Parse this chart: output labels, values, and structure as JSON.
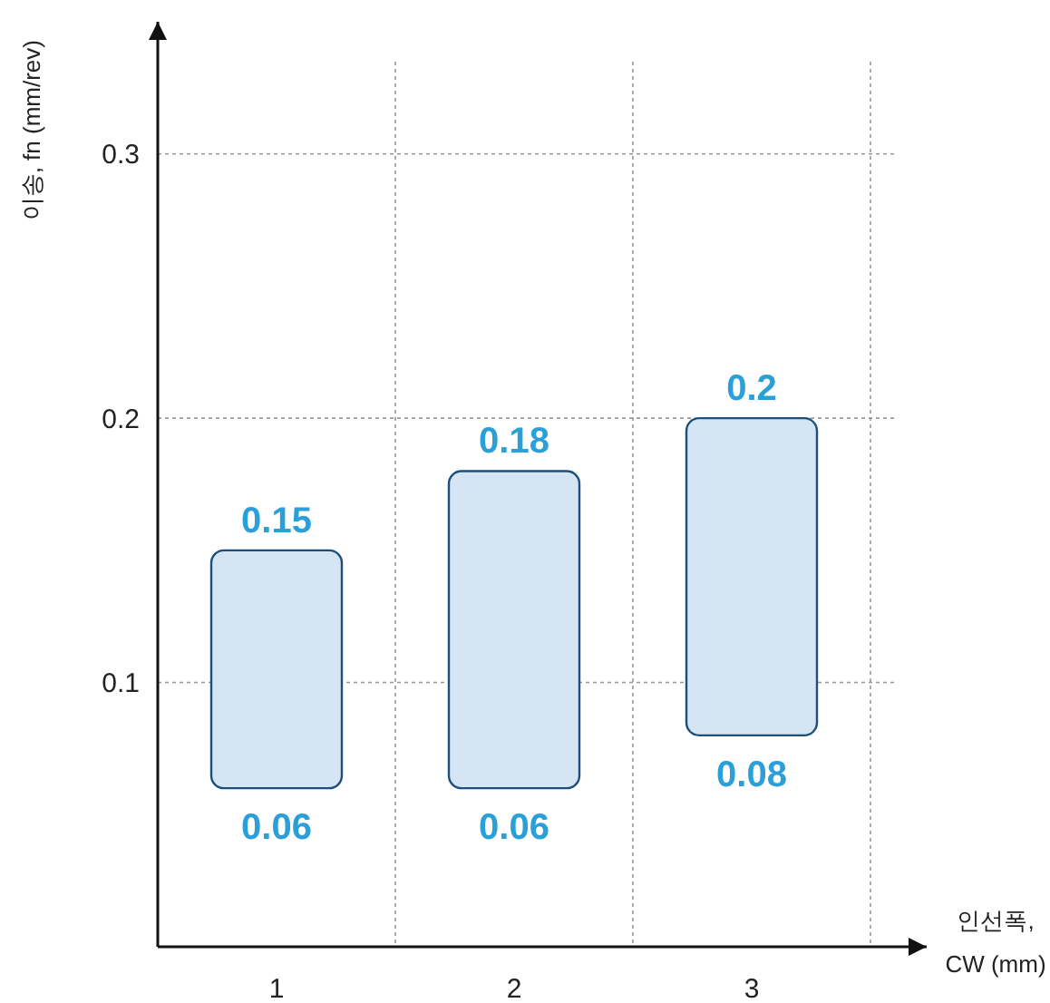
{
  "chart_data": {
    "type": "bar",
    "categories": [
      "1",
      "2",
      "3"
    ],
    "base": [
      0.06,
      0.06,
      0.08
    ],
    "values": [
      0.09,
      0.12,
      0.12
    ],
    "color": "#d5e5f4",
    "ylim": [
      0,
      0.35
    ],
    "yticks": [
      0.1,
      0.2,
      0.3
    ],
    "grid": true,
    "xlabel": "인선폭, CW (mm)",
    "ylabel": "이송, fn (mm/rev)",
    "annotations": [
      {
        "text": "0.15",
        "x": "1",
        "y": 0.15
      },
      {
        "text": "0.06",
        "x": "1",
        "y": 0.06
      },
      {
        "text": "0.18",
        "x": "2",
        "y": 0.18
      },
      {
        "text": "0.06",
        "x": "2",
        "y": 0.06
      },
      {
        "text": "0.2",
        "x": "3",
        "y": 0.2
      },
      {
        "text": "0.08",
        "x": "3",
        "y": 0.08
      }
    ]
  }
}
